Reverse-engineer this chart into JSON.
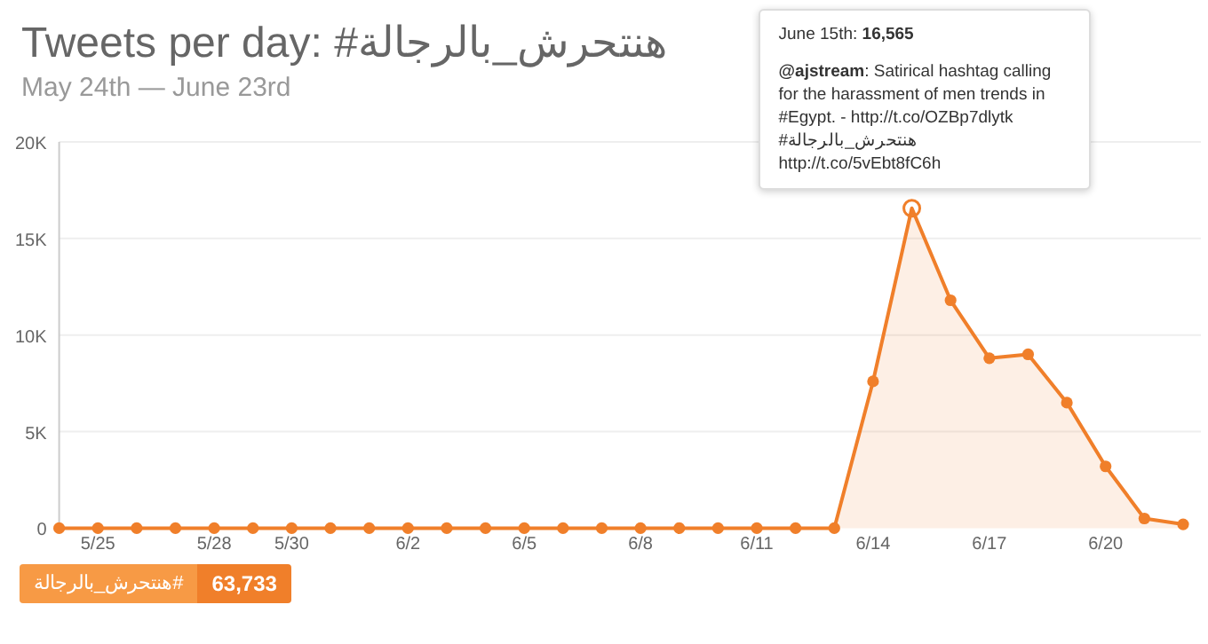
{
  "chart_data": {
    "type": "area",
    "title": "Tweets per day: #هنتحرش_بالرجالة",
    "subtitle": "May 24th — June 23rd",
    "categories": [
      null,
      "5/25",
      null,
      null,
      "5/28",
      null,
      "5/30",
      null,
      null,
      "6/2",
      null,
      null,
      "6/5",
      null,
      null,
      "6/8",
      null,
      null,
      "6/11",
      null,
      null,
      "6/14",
      null,
      null,
      "6/17",
      null,
      null,
      "6/20",
      null,
      null
    ],
    "series": [
      {
        "color": "#f07f2a",
        "values": [
          0,
          0,
          0,
          0,
          0,
          0,
          0,
          0,
          0,
          0,
          0,
          0,
          0,
          0,
          0,
          0,
          0,
          0,
          0,
          0,
          0,
          7600,
          16565,
          11800,
          8800,
          9000,
          6500,
          3200,
          500,
          200
        ]
      }
    ],
    "ylim": [
      0,
      20000
    ],
    "yticks": [
      0,
      {
        "value": 5000,
        "label": "5K"
      },
      {
        "value": 10000,
        "label": "10K"
      },
      {
        "value": 15000,
        "label": "15K"
      },
      {
        "value": 20000,
        "label": "20K"
      }
    ],
    "grid": "y",
    "marker": "circle",
    "annotations": [
      "June 15th: **16,565**",
      "**@ajstream**: Satirical hashtag calling for the harassment of men trends in #Egypt. - http://t.co/OZBp7dlytk #هنتحرش_بالرجالة http://t.co/5vEbt8fC6h",
      "#هنتحرش_بالرجالة",
      "63,733"
    ]
  }
}
